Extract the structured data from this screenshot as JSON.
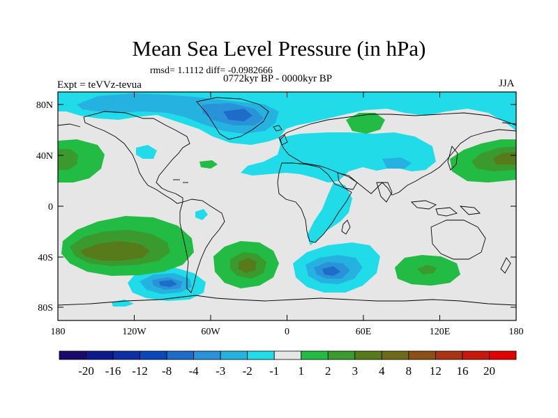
{
  "title": "Mean Sea Level Pressure (in hPa)",
  "stats": "rmsd= 1.1112 diff= -0.0982666",
  "period": "0772kyr BP - 0000kyr BP",
  "experiment": "Expt = teVVz-tevua",
  "season": "JJA",
  "axes": {
    "y_ticks": [
      "80N",
      "40N",
      "0",
      "40S",
      "80S"
    ],
    "x_ticks": [
      "180",
      "120W",
      "60W",
      "0",
      "60E",
      "120E",
      "180"
    ]
  },
  "colorbar": {
    "labels": [
      "-20",
      "-16",
      "-12",
      "-8",
      "-4",
      "-3",
      "-2",
      "-1",
      "1",
      "2",
      "3",
      "4",
      "8",
      "12",
      "16",
      "20"
    ],
    "colors": [
      "#1a0a6b",
      "#0c1a8c",
      "#0d2ea3",
      "#0a47b8",
      "#1c6cc8",
      "#2a92d8",
      "#25b2e0",
      "#1fdce8",
      "#e6e6e6",
      "#22bb44",
      "#3a9a2e",
      "#577a1a",
      "#6d6a1a",
      "#8a5014",
      "#a83414",
      "#c8180e",
      "#e00000"
    ]
  },
  "colors": {
    "land_neutral": "#e6e6e6",
    "ocean_neutral": "#e6e6e6",
    "coastline": "#000000"
  }
}
